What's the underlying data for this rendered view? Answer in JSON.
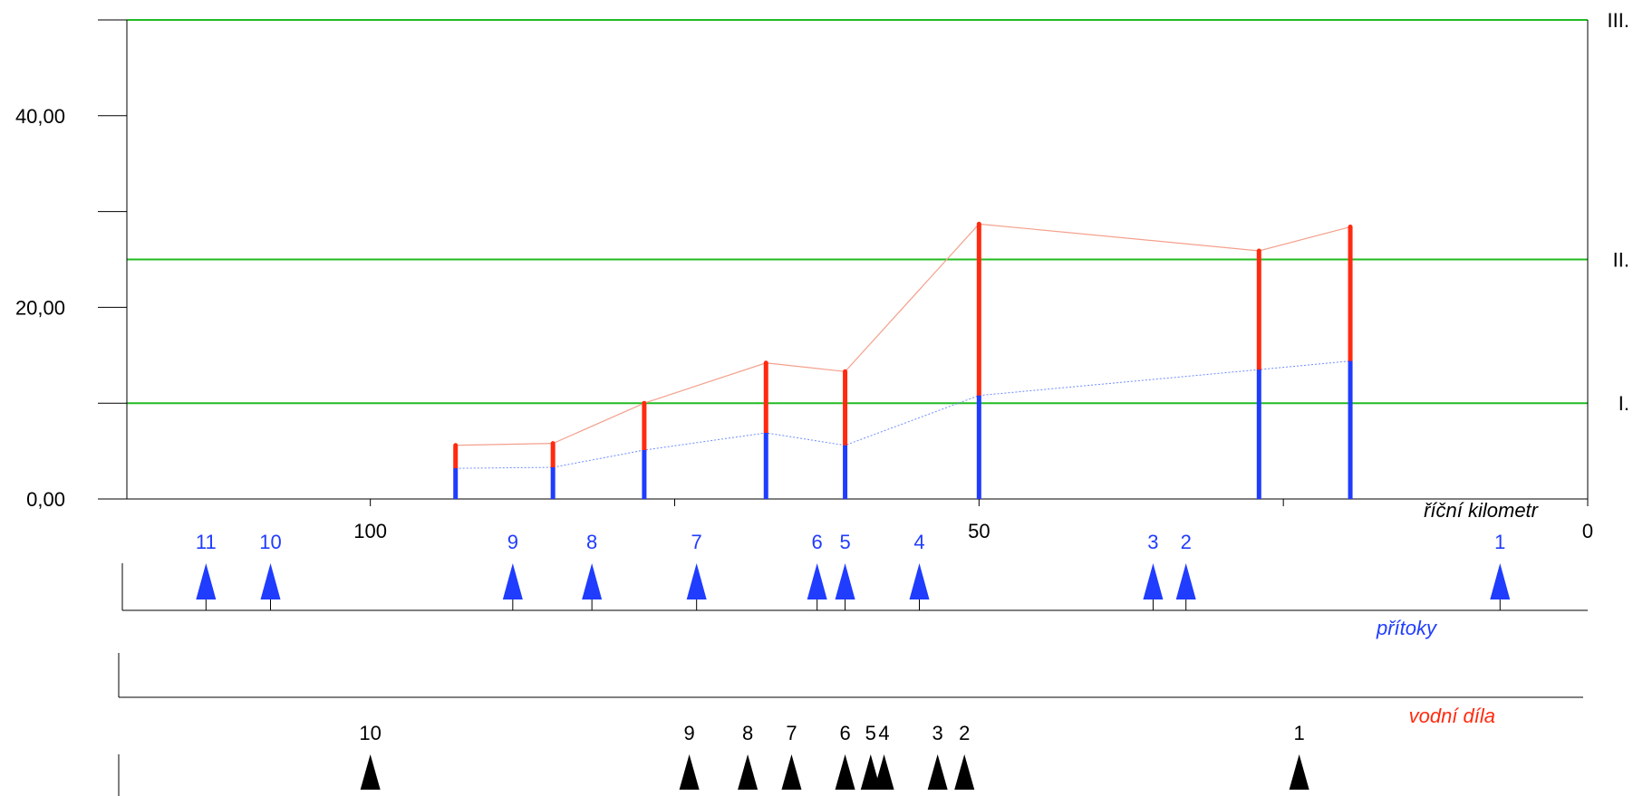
{
  "chart_data": {
    "type": "bar",
    "xlabel": "říční kilometr",
    "x_reversed": true,
    "xlim": [
      0,
      120
    ],
    "ylim": [
      0,
      50
    ],
    "y_ticks": [
      0,
      10,
      20,
      30,
      40,
      50
    ],
    "y_tick_labels": [
      {
        "value": 0,
        "label": "0,00"
      },
      {
        "value": 20,
        "label": "20,00"
      },
      {
        "value": 40,
        "label": "40,00"
      }
    ],
    "x_ticks": [
      0,
      25,
      50,
      75,
      100
    ],
    "x_tick_labels": [
      {
        "value": 100,
        "label": "100"
      },
      {
        "value": 50,
        "label": "50"
      },
      {
        "value": 0,
        "label": "0"
      }
    ],
    "thresholds": [
      {
        "value": 10,
        "label": "I."
      },
      {
        "value": 25,
        "label": "II."
      },
      {
        "value": 50,
        "label": "III."
      }
    ],
    "stations": [
      {
        "km": 93.0,
        "lower": 3.2,
        "upper": 5.6
      },
      {
        "km": 85.0,
        "lower": 3.3,
        "upper": 5.8
      },
      {
        "km": 77.5,
        "lower": 5.1,
        "upper": 10.0
      },
      {
        "km": 67.5,
        "lower": 6.9,
        "upper": 14.2
      },
      {
        "km": 61.0,
        "lower": 5.6,
        "upper": 13.3
      },
      {
        "km": 50.0,
        "lower": 10.8,
        "upper": 28.7
      },
      {
        "km": 27.0,
        "lower": 13.5,
        "upper": 25.9
      },
      {
        "km": 19.5,
        "lower": 14.4,
        "upper": 28.4
      }
    ],
    "tributaries": {
      "label": "přítoky",
      "markers": [
        {
          "km": 113.5,
          "label": "11"
        },
        {
          "km": 108.2,
          "label": "10"
        },
        {
          "km": 88.3,
          "label": "9"
        },
        {
          "km": 81.8,
          "label": "8"
        },
        {
          "km": 73.2,
          "label": "7"
        },
        {
          "km": 63.3,
          "label": "6"
        },
        {
          "km": 61.0,
          "label": "5"
        },
        {
          "km": 54.9,
          "label": "4"
        },
        {
          "km": 35.7,
          "label": "3"
        },
        {
          "km": 33.0,
          "label": "2"
        },
        {
          "km": 7.2,
          "label": "1"
        }
      ]
    },
    "water_works": {
      "label": "vodní díla",
      "markers": [
        {
          "km": 100.0,
          "label": "10"
        },
        {
          "km": 73.8,
          "label": "9"
        },
        {
          "km": 69.0,
          "label": "8"
        },
        {
          "km": 65.4,
          "label": "7"
        },
        {
          "km": 61.0,
          "label": "6"
        },
        {
          "km": 58.9,
          "label": "5"
        },
        {
          "km": 57.8,
          "label": "4"
        },
        {
          "km": 53.4,
          "label": "3"
        },
        {
          "km": 51.2,
          "label": "2"
        },
        {
          "km": 23.7,
          "label": "1"
        }
      ]
    },
    "colors": {
      "threshold": "#22bb22",
      "lower": "#1f3cff",
      "upper": "#ff2a0f",
      "tributary_marker": "#1f3cff",
      "works_marker": "#000000",
      "axis": "#000000"
    }
  }
}
